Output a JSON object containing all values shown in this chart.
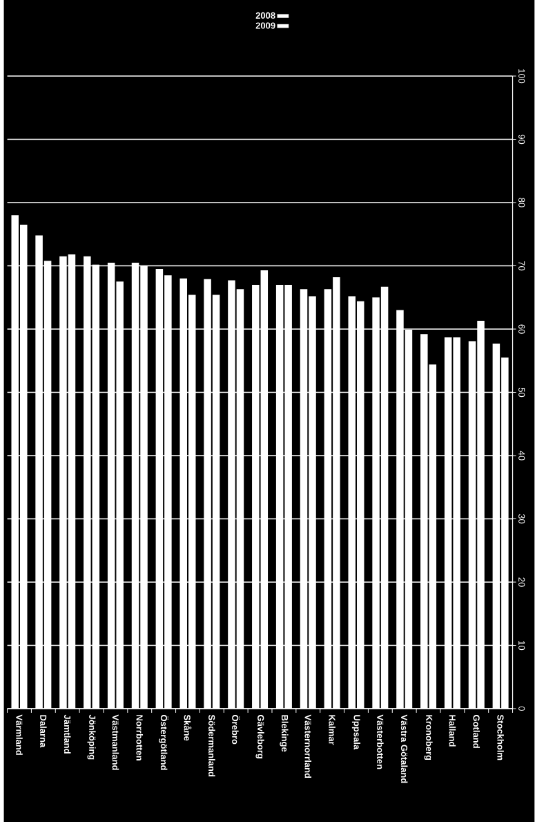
{
  "chart_data": {
    "type": "bar",
    "categories": [
      "Värmland",
      "Dalarna",
      "Jämtland",
      "Jönköping",
      "Västmanland",
      "Norrbotten",
      "Östergötland",
      "Skåne",
      "Södermanland",
      "Örebro",
      "Gävleborg",
      "Blekinge",
      "Västernorrland",
      "Kalmar",
      "Uppsala",
      "Västerbotten",
      "Västra Götaland",
      "Kronoberg",
      "Halland",
      "Gotland",
      "Stockholm"
    ],
    "series": [
      {
        "name": "2009",
        "color": "#ffffff",
        "values": [
          78.0,
          74.8,
          71.5,
          71.5,
          70.5,
          70.5,
          69.5,
          68.0,
          67.9,
          67.7,
          67.0,
          67.0,
          66.3,
          66.3,
          65.2,
          65.0,
          63.0,
          59.2,
          58.7,
          58.1,
          57.7
        ]
      },
      {
        "name": "2008",
        "color": "#ffffff",
        "values": [
          76.5,
          70.8,
          71.8,
          70.2,
          67.5,
          70.0,
          68.5,
          65.4,
          65.4,
          66.3,
          69.3,
          67.0,
          65.2,
          68.2,
          64.4,
          66.7,
          59.9,
          54.4,
          58.7,
          61.3,
          55.5
        ]
      }
    ],
    "ylim": [
      0,
      100
    ],
    "yticks": [
      0,
      10,
      20,
      30,
      40,
      50,
      60,
      70,
      80,
      90,
      100
    ],
    "grid": "y",
    "legend": "top"
  }
}
